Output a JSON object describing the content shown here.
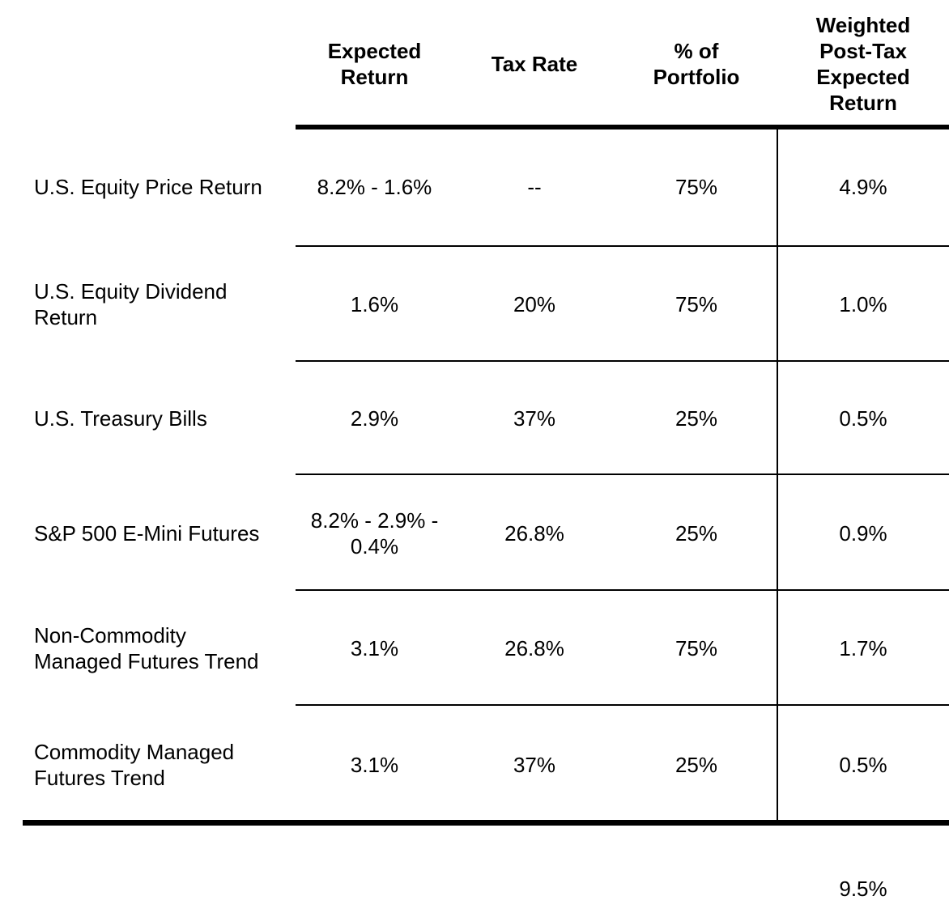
{
  "table": {
    "column_headers": [
      "Expected\nReturn",
      "Tax Rate",
      "% of\nPortfolio",
      "Weighted\nPost-Tax\nExpected\nReturn"
    ],
    "rows": [
      {
        "label": "U.S. Equity Price Return",
        "expected_return": "8.2% - 1.6%",
        "tax_rate": "--",
        "pct_of_portfolio": "75%",
        "weighted_post_tax_expected_return": "4.9%"
      },
      {
        "label": "U.S. Equity Dividend\nReturn",
        "expected_return": "1.6%",
        "tax_rate": "20%",
        "pct_of_portfolio": "75%",
        "weighted_post_tax_expected_return": "1.0%"
      },
      {
        "label": "U.S. Treasury Bills",
        "expected_return": "2.9%",
        "tax_rate": "37%",
        "pct_of_portfolio": "25%",
        "weighted_post_tax_expected_return": "0.5%"
      },
      {
        "label": "S&P 500 E-Mini Futures",
        "expected_return": "8.2% - 2.9% -\n0.4%",
        "tax_rate": "26.8%",
        "pct_of_portfolio": "25%",
        "weighted_post_tax_expected_return": "0.9%"
      },
      {
        "label": "Non-Commodity\nManaged Futures Trend",
        "expected_return": "3.1%",
        "tax_rate": "26.8%",
        "pct_of_portfolio": "75%",
        "weighted_post_tax_expected_return": "1.7%"
      },
      {
        "label": "Commodity Managed\nFutures Trend",
        "expected_return": "3.1%",
        "tax_rate": "37%",
        "pct_of_portfolio": "25%",
        "weighted_post_tax_expected_return": "0.5%"
      }
    ],
    "total": {
      "weighted_post_tax_expected_return": "9.5%"
    }
  },
  "colors": {
    "background": "#ffffff",
    "text": "#000000",
    "rules": "#000000"
  }
}
